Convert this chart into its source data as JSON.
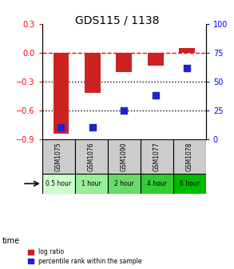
{
  "title": "GDS115 / 1138",
  "samples": [
    "GSM1075",
    "GSM1076",
    "GSM1090",
    "GSM1077",
    "GSM1078"
  ],
  "time_labels": [
    "0.5 hour",
    "1 hour",
    "2 hour",
    "4 hour",
    "6 hour"
  ],
  "time_colors": [
    "#ccffcc",
    "#99ee99",
    "#66dd66",
    "#33cc33",
    "#00bb00"
  ],
  "log_ratios": [
    -0.84,
    -0.42,
    -0.2,
    -0.13,
    0.05
  ],
  "percentile_ranks": [
    10,
    10,
    25,
    38,
    62
  ],
  "bar_color": "#cc2222",
  "dot_color": "#2222cc",
  "ylim_left": [
    -0.9,
    0.3
  ],
  "ylim_right": [
    0,
    100
  ],
  "yticks_left": [
    0.3,
    0.0,
    -0.3,
    -0.6,
    -0.9
  ],
  "yticks_right": [
    100,
    75,
    50,
    25,
    0
  ],
  "hline_red": 0.0,
  "hline_black1": -0.3,
  "hline_black2": -0.6,
  "bar_width": 0.5,
  "sample_cell_color": "#cccccc",
  "legend_log_ratio": "log ratio",
  "legend_percentile": "percentile rank within the sample",
  "time_row_label": "time"
}
